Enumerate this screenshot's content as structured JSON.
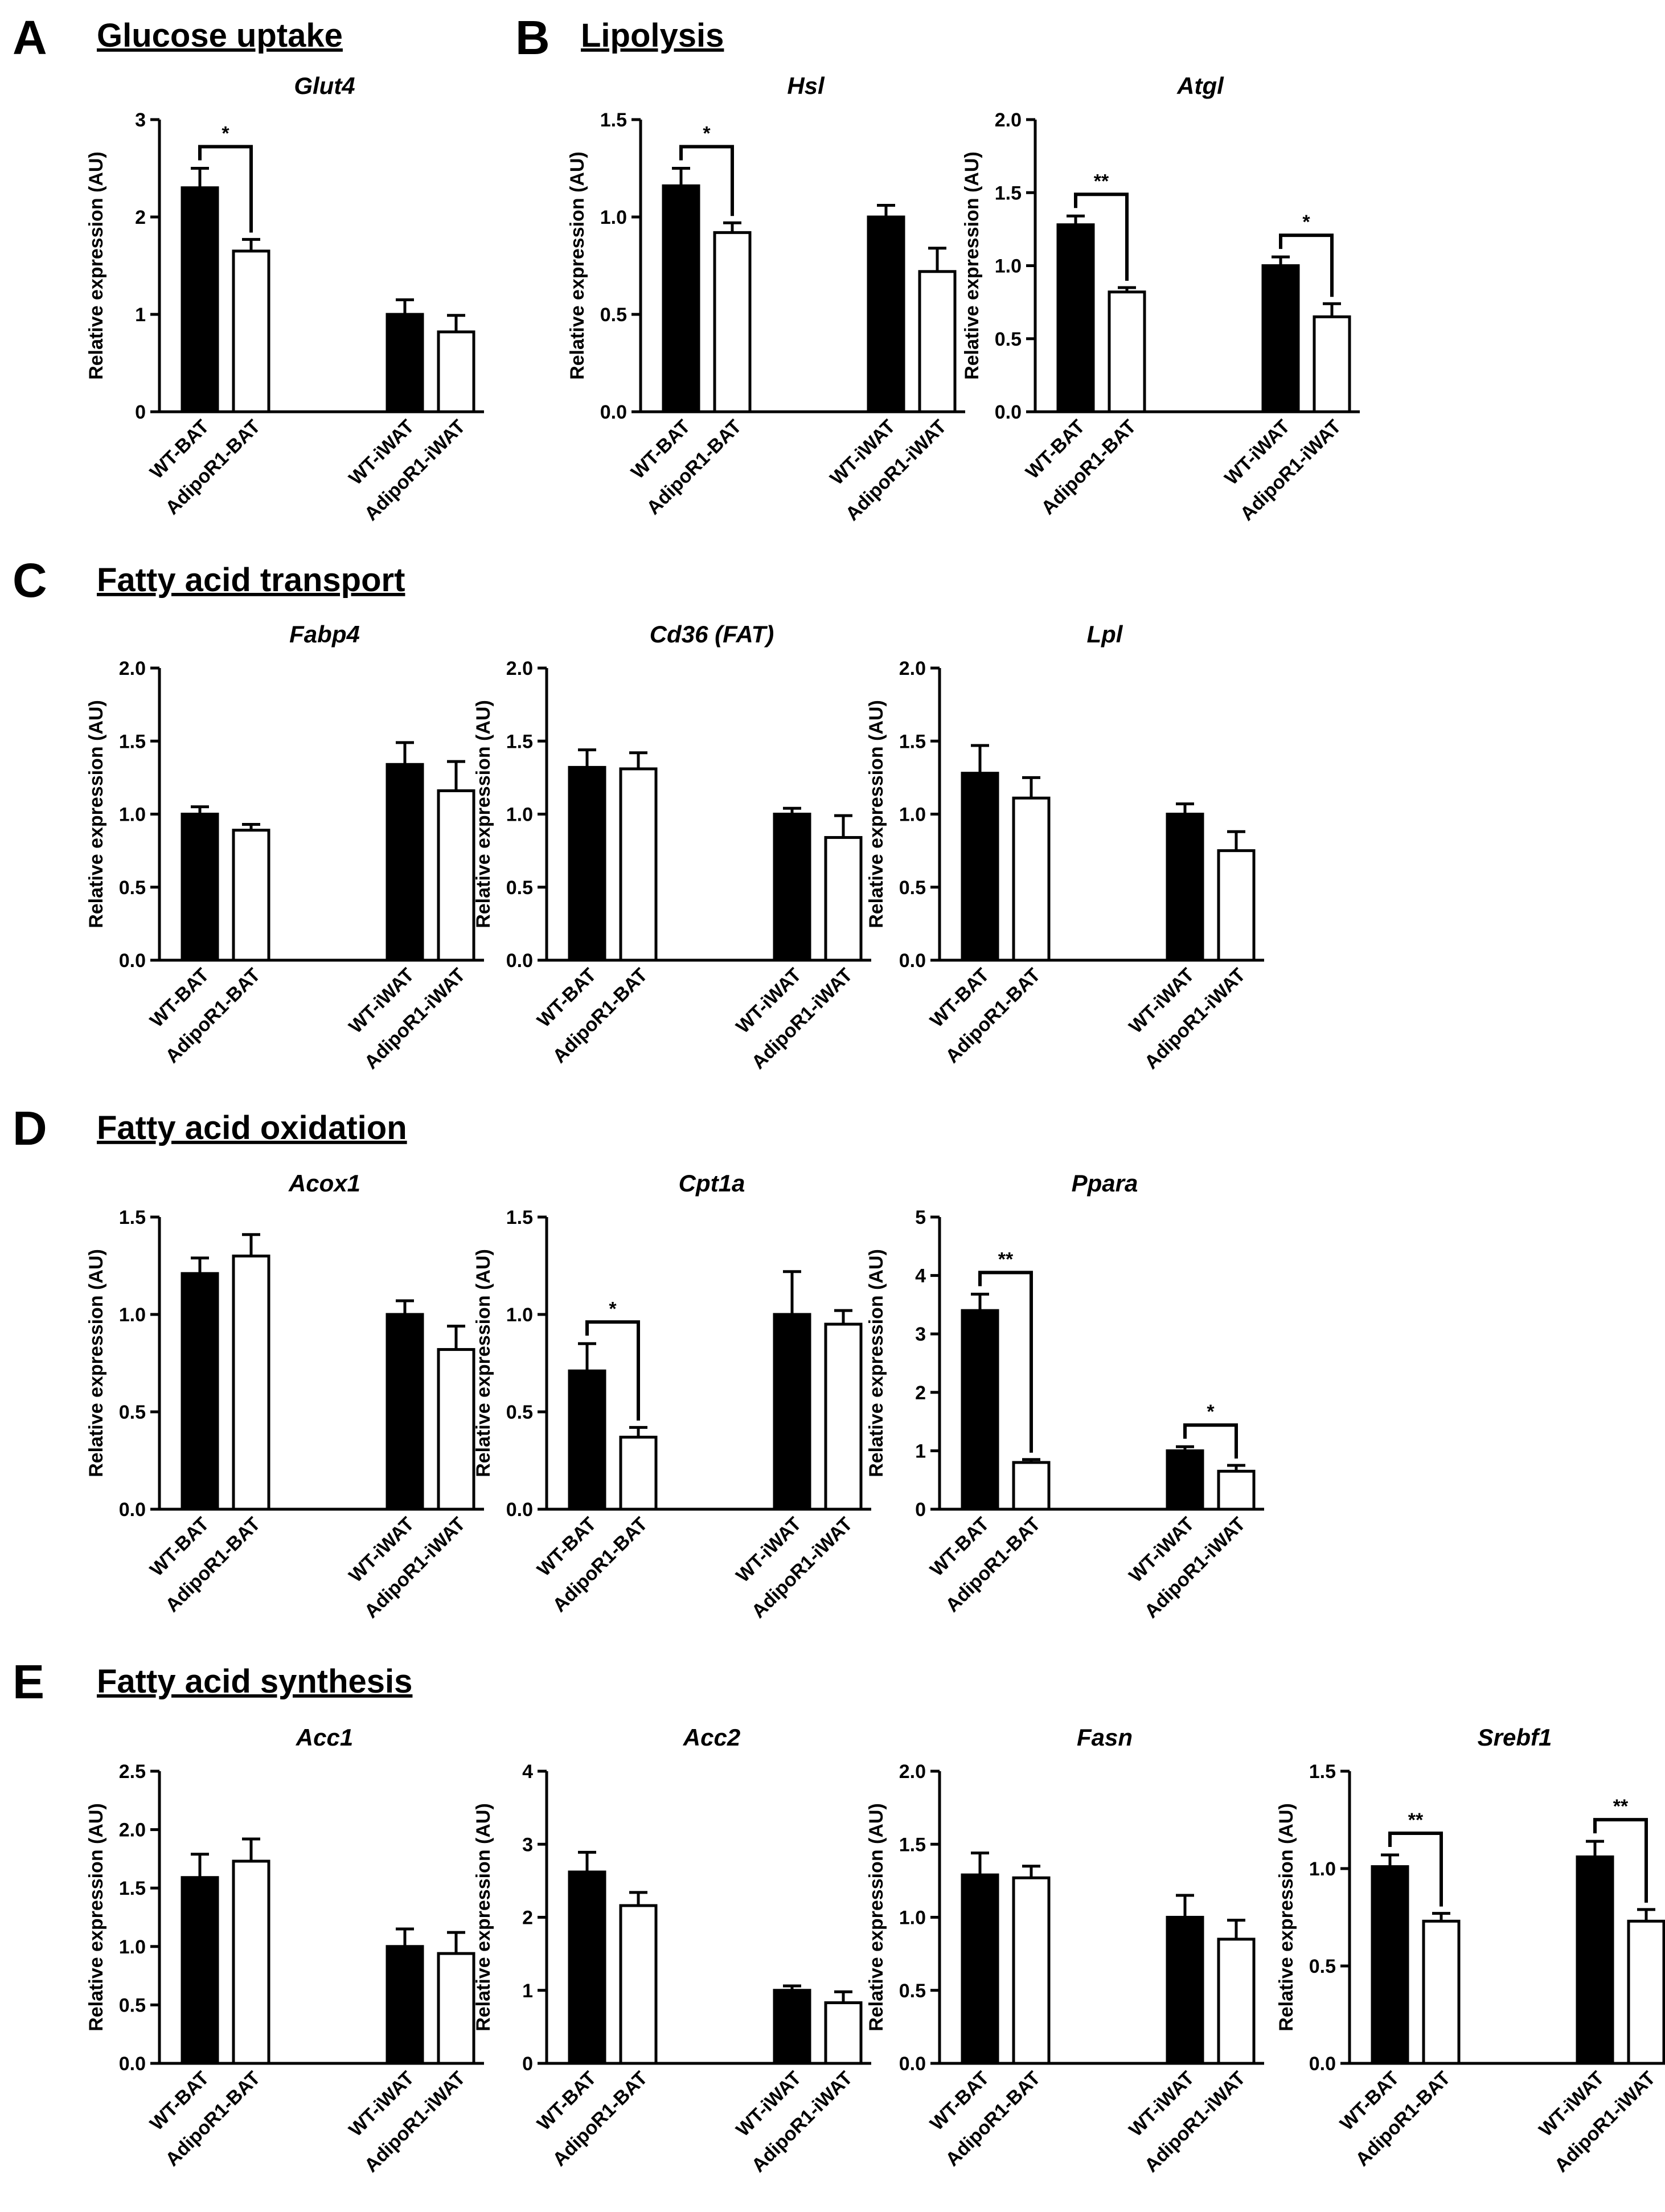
{
  "figure": {
    "sections": [
      {
        "letter": "A",
        "title": "Glucose uptake"
      },
      {
        "letter": "B",
        "title": "Lipolysis"
      },
      {
        "letter": "C",
        "title": "Fatty acid transport"
      },
      {
        "letter": "D",
        "title": "Fatty acid oxidation"
      },
      {
        "letter": "E",
        "title": "Fatty acid synthesis"
      }
    ],
    "bar_colors": {
      "WT": "#000000",
      "AdipoR1": "#ffffff",
      "outline": "#000000"
    }
  },
  "chart_data": [
    {
      "type": "bar",
      "title": "Glut4",
      "ylabel": "Relative expression (AU)",
      "ylim": [
        0,
        3
      ],
      "ticks": [
        "0",
        "1",
        "2",
        "3"
      ],
      "categories": [
        "WT-BAT",
        "AdipoR1-BAT",
        "WT-iWAT",
        "AdipoR1-iWAT"
      ],
      "values": [
        2.3,
        1.65,
        1.0,
        0.82
      ],
      "errors": [
        0.2,
        0.12,
        0.15,
        0.17
      ],
      "significance": [
        {
          "between": [
            0,
            1
          ],
          "label": "*"
        }
      ]
    },
    {
      "type": "bar",
      "title": "Hsl",
      "ylabel": "Relative expression (AU)",
      "ylim": [
        0,
        1.5
      ],
      "ticks": [
        "0.0",
        "0.5",
        "1.0",
        "1.5"
      ],
      "categories": [
        "WT-BAT",
        "AdipoR1-BAT",
        "WT-iWAT",
        "AdipoR1-iWAT"
      ],
      "values": [
        1.16,
        0.92,
        1.0,
        0.72
      ],
      "errors": [
        0.09,
        0.05,
        0.06,
        0.12
      ],
      "significance": [
        {
          "between": [
            0,
            1
          ],
          "label": "*"
        }
      ]
    },
    {
      "type": "bar",
      "title": "Atgl",
      "ylabel": "Relative expression (AU)",
      "ylim": [
        0,
        2
      ],
      "ticks": [
        "0.0",
        "0.5",
        "1.0",
        "1.5",
        "2.0"
      ],
      "categories": [
        "WT-BAT",
        "AdipoR1-BAT",
        "WT-iWAT",
        "AdipoR1-iWAT"
      ],
      "values": [
        1.28,
        0.82,
        1.0,
        0.65
      ],
      "errors": [
        0.06,
        0.03,
        0.06,
        0.09
      ],
      "significance": [
        {
          "between": [
            0,
            1
          ],
          "label": "**"
        },
        {
          "between": [
            2,
            3
          ],
          "label": "*"
        }
      ]
    },
    {
      "type": "bar",
      "title": "Fabp4",
      "ylabel": "Relative expression (AU)",
      "ylim": [
        0,
        2
      ],
      "ticks": [
        "0.0",
        "0.5",
        "1.0",
        "1.5",
        "2.0"
      ],
      "categories": [
        "WT-BAT",
        "AdipoR1-BAT",
        "WT-iWAT",
        "AdipoR1-iWAT"
      ],
      "values": [
        1.0,
        0.89,
        1.34,
        1.16
      ],
      "errors": [
        0.05,
        0.04,
        0.15,
        0.2
      ],
      "significance": []
    },
    {
      "type": "bar",
      "title": "Cd36 (FAT)",
      "ylabel": "Relative expression (AU)",
      "ylim": [
        0,
        2
      ],
      "ticks": [
        "0.0",
        "0.5",
        "1.0",
        "1.5",
        "2.0"
      ],
      "categories": [
        "WT-BAT",
        "AdipoR1-BAT",
        "WT-iWAT",
        "AdipoR1-iWAT"
      ],
      "values": [
        1.32,
        1.31,
        1.0,
        0.84
      ],
      "errors": [
        0.12,
        0.11,
        0.04,
        0.15
      ],
      "significance": []
    },
    {
      "type": "bar",
      "title": "Lpl",
      "ylabel": "Relative expression (AU)",
      "ylim": [
        0,
        2
      ],
      "ticks": [
        "0.0",
        "0.5",
        "1.0",
        "1.5",
        "2.0"
      ],
      "categories": [
        "WT-BAT",
        "AdipoR1-BAT",
        "WT-iWAT",
        "AdipoR1-iWAT"
      ],
      "values": [
        1.28,
        1.11,
        1.0,
        0.75
      ],
      "errors": [
        0.19,
        0.14,
        0.07,
        0.13
      ],
      "significance": []
    },
    {
      "type": "bar",
      "title": "Acox1",
      "ylabel": "Relative expression (AU)",
      "ylim": [
        0,
        1.5
      ],
      "ticks": [
        "0.0",
        "0.5",
        "1.0",
        "1.5"
      ],
      "categories": [
        "WT-BAT",
        "AdipoR1-BAT",
        "WT-iWAT",
        "AdipoR1-iWAT"
      ],
      "values": [
        1.21,
        1.3,
        1.0,
        0.82
      ],
      "errors": [
        0.08,
        0.11,
        0.07,
        0.12
      ],
      "significance": []
    },
    {
      "type": "bar",
      "title": "Cpt1a",
      "ylabel": "Relative expression (AU)",
      "ylim": [
        0,
        1.5
      ],
      "ticks": [
        "0.0",
        "0.5",
        "1.0",
        "1.5"
      ],
      "categories": [
        "WT-BAT",
        "AdipoR1-BAT",
        "WT-iWAT",
        "AdipoR1-iWAT"
      ],
      "values": [
        0.71,
        0.37,
        1.0,
        0.95
      ],
      "errors": [
        0.14,
        0.05,
        0.22,
        0.07
      ],
      "significance": [
        {
          "between": [
            0,
            1
          ],
          "label": "*"
        }
      ]
    },
    {
      "type": "bar",
      "title": "Ppara",
      "ylabel": "Relative expression (AU)",
      "ylim": [
        0,
        5
      ],
      "ticks": [
        "0",
        "1",
        "2",
        "3",
        "4",
        "5"
      ],
      "categories": [
        "WT-BAT",
        "AdipoR1-BAT",
        "WT-iWAT",
        "AdipoR1-iWAT"
      ],
      "values": [
        3.4,
        0.8,
        1.0,
        0.65
      ],
      "errors": [
        0.28,
        0.05,
        0.07,
        0.1
      ],
      "significance": [
        {
          "between": [
            0,
            1
          ],
          "label": "**"
        },
        {
          "between": [
            2,
            3
          ],
          "label": "*"
        }
      ]
    },
    {
      "type": "bar",
      "title": "Acc1",
      "ylabel": "Relative expression (AU)",
      "ylim": [
        0,
        2.5
      ],
      "ticks": [
        "0.0",
        "0.5",
        "1.0",
        "1.5",
        "2.0",
        "2.5"
      ],
      "categories": [
        "WT-BAT",
        "AdipoR1-BAT",
        "WT-iWAT",
        "AdipoR1-iWAT"
      ],
      "values": [
        1.59,
        1.73,
        1.0,
        0.94
      ],
      "errors": [
        0.2,
        0.19,
        0.15,
        0.18
      ],
      "significance": []
    },
    {
      "type": "bar",
      "title": "Acc2",
      "ylabel": "Relative expression (AU)",
      "ylim": [
        0,
        4
      ],
      "ticks": [
        "0",
        "1",
        "2",
        "3",
        "4"
      ],
      "categories": [
        "WT-BAT",
        "AdipoR1-BAT",
        "WT-iWAT",
        "AdipoR1-iWAT"
      ],
      "values": [
        2.62,
        2.16,
        1.0,
        0.83
      ],
      "errors": [
        0.27,
        0.18,
        0.06,
        0.15
      ],
      "significance": []
    },
    {
      "type": "bar",
      "title": "Fasn",
      "ylabel": "Relative expression (AU)",
      "ylim": [
        0,
        2
      ],
      "ticks": [
        "0.0",
        "0.5",
        "1.0",
        "1.5",
        "2.0"
      ],
      "categories": [
        "WT-BAT",
        "AdipoR1-BAT",
        "WT-iWAT",
        "AdipoR1-iWAT"
      ],
      "values": [
        1.29,
        1.27,
        1.0,
        0.85
      ],
      "errors": [
        0.15,
        0.08,
        0.15,
        0.13
      ],
      "significance": []
    },
    {
      "type": "bar",
      "title": "Srebf1",
      "ylabel": "Relative expression (AU)",
      "ylim": [
        0,
        1.5
      ],
      "ticks": [
        "0.0",
        "0.5",
        "1.0",
        "1.5"
      ],
      "categories": [
        "WT-BAT",
        "AdipoR1-BAT",
        "WT-iWAT",
        "AdipoR1-iWAT"
      ],
      "values": [
        1.01,
        0.73,
        1.06,
        0.73
      ],
      "errors": [
        0.06,
        0.04,
        0.08,
        0.06
      ],
      "significance": [
        {
          "between": [
            0,
            1
          ],
          "label": "**"
        },
        {
          "between": [
            2,
            3
          ],
          "label": "**"
        }
      ]
    }
  ]
}
